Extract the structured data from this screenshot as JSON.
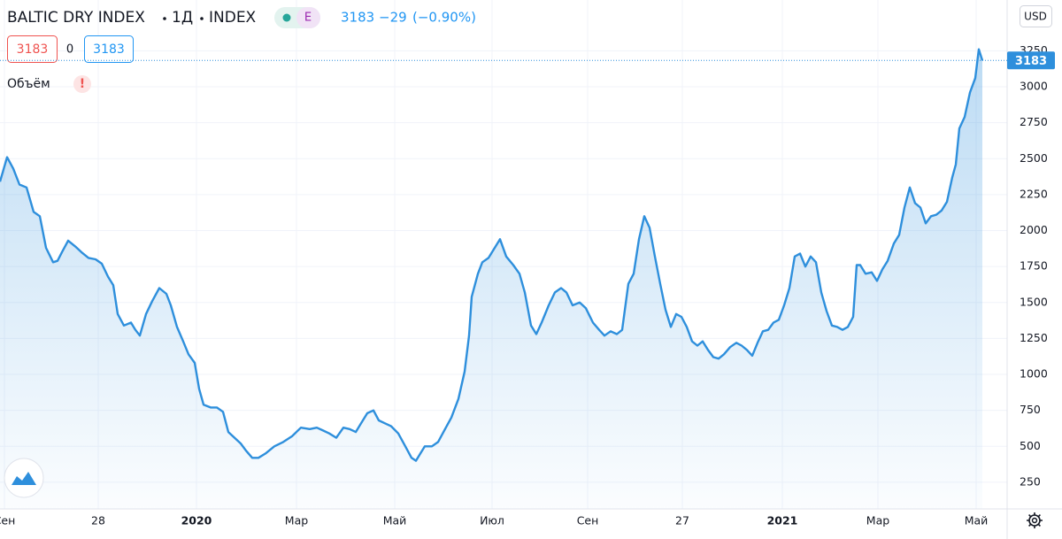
{
  "chart_data": {
    "type": "line",
    "title": "BALTIC DRY INDEX",
    "interval": "1Д",
    "exchange": "INDEX",
    "badge": "E",
    "change": {
      "value": -29,
      "label": "−29"
    },
    "change_percent": {
      "value": -0.9,
      "label": "(−0.90%)"
    },
    "spread": 0,
    "volume_label": "Объём",
    "volume_alert": "!",
    "currency": "USD",
    "color": "#2e8fdc",
    "xlim": [
      0,
      1138
    ],
    "ylim": [
      65,
      3603
    ],
    "yticks": [
      250,
      500,
      750,
      1000,
      1250,
      1500,
      1750,
      2000,
      2250,
      2500,
      2750,
      3000,
      3250
    ],
    "xticks": [
      {
        "value": 5,
        "label": "Сен"
      },
      {
        "value": 111,
        "label": "28"
      },
      {
        "value": 222,
        "label": "2020"
      },
      {
        "value": 335,
        "label": "Мар"
      },
      {
        "value": 446,
        "label": "Май"
      },
      {
        "value": 556,
        "label": "Июл"
      },
      {
        "value": 664,
        "label": "Сен"
      },
      {
        "value": 771,
        "label": "27"
      },
      {
        "value": 884,
        "label": "2021"
      },
      {
        "value": 992,
        "label": "Мар"
      },
      {
        "value": 1103,
        "label": "Май"
      }
    ],
    "grid": true,
    "x": [
      0,
      8,
      15,
      22,
      30,
      38,
      45,
      52,
      60,
      65,
      70,
      77,
      85,
      92,
      100,
      108,
      115,
      122,
      128,
      133,
      140,
      148,
      153,
      158,
      165,
      172,
      180,
      188,
      193,
      200,
      207,
      213,
      220,
      225,
      230,
      238,
      245,
      252,
      258,
      265,
      272,
      278,
      285,
      292,
      300,
      310,
      320,
      330,
      340,
      350,
      358,
      365,
      372,
      380,
      388,
      395,
      402,
      408,
      415,
      422,
      428,
      435,
      442,
      450,
      458,
      465,
      470,
      475,
      480,
      488,
      495,
      502,
      510,
      518,
      525,
      530,
      533,
      540,
      545,
      552,
      558,
      565,
      572,
      580,
      587,
      593,
      600,
      606,
      612,
      620,
      627,
      634,
      640,
      647,
      655,
      662,
      670,
      677,
      683,
      690,
      697,
      703,
      710,
      716,
      722,
      728,
      734,
      740,
      746,
      752,
      758,
      764,
      770,
      776,
      782,
      788,
      794,
      800,
      806,
      812,
      818,
      825,
      832,
      838,
      844,
      850,
      856,
      862,
      868,
      874,
      880,
      886,
      892,
      898,
      904,
      910,
      916,
      922,
      928,
      934,
      940,
      946,
      952,
      958,
      964,
      968,
      972,
      978,
      985,
      991,
      997,
      1003,
      1010,
      1016,
      1022,
      1028,
      1034,
      1040,
      1046,
      1052,
      1058,
      1064,
      1070,
      1076,
      1080,
      1084,
      1090,
      1096,
      1102,
      1106,
      1110
    ],
    "values": [
      2340,
      2510,
      2430,
      2320,
      2300,
      2130,
      2100,
      1880,
      1780,
      1790,
      1850,
      1930,
      1890,
      1850,
      1810,
      1800,
      1770,
      1680,
      1620,
      1420,
      1340,
      1360,
      1310,
      1270,
      1420,
      1510,
      1600,
      1560,
      1480,
      1330,
      1230,
      1140,
      1080,
      900,
      790,
      770,
      770,
      740,
      600,
      560,
      520,
      470,
      420,
      420,
      450,
      500,
      530,
      570,
      630,
      620,
      630,
      610,
      590,
      560,
      630,
      620,
      600,
      660,
      730,
      750,
      680,
      660,
      640,
      590,
      500,
      420,
      400,
      450,
      500,
      500,
      530,
      610,
      700,
      830,
      1020,
      1270,
      1540,
      1700,
      1780,
      1810,
      1870,
      1940,
      1820,
      1760,
      1700,
      1570,
      1340,
      1280,
      1360,
      1480,
      1570,
      1600,
      1570,
      1480,
      1500,
      1460,
      1360,
      1310,
      1270,
      1300,
      1280,
      1310,
      1630,
      1700,
      1940,
      2100,
      2020,
      1820,
      1630,
      1450,
      1330,
      1420,
      1400,
      1330,
      1230,
      1200,
      1230,
      1170,
      1120,
      1110,
      1140,
      1190,
      1220,
      1200,
      1170,
      1130,
      1220,
      1300,
      1310,
      1360,
      1380,
      1480,
      1600,
      1820,
      1840,
      1750,
      1820,
      1780,
      1570,
      1440,
      1340,
      1330,
      1310,
      1330,
      1400,
      1760,
      1760,
      1700,
      1710,
      1650,
      1730,
      1790,
      1910,
      1970,
      2160,
      2300,
      2190,
      2160,
      2050,
      2100,
      2110,
      2140,
      2200,
      2370,
      2460,
      2710,
      2790,
      2960,
      3060,
      3260,
      3183
    ]
  }
}
